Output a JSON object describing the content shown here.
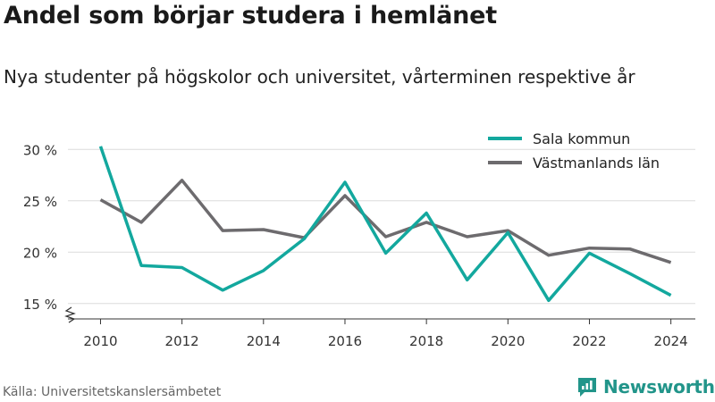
{
  "title": "Andel som börjar studera i hemlänet",
  "subtitle": "Nya studenter på högskolor och universitet, vårterminen respektive år",
  "source": "Källa: Universitetskanslersämbetet",
  "brand": {
    "name": "Newsworthy",
    "icon": "newsworthy-logo-icon",
    "color": "#22958a"
  },
  "chart_data": {
    "type": "line",
    "x": [
      2010,
      2011,
      2012,
      2013,
      2014,
      2015,
      2016,
      2017,
      2018,
      2019,
      2020,
      2021,
      2022,
      2023,
      2024
    ],
    "x_ticks": [
      2010,
      2012,
      2014,
      2016,
      2018,
      2020,
      2022,
      2024
    ],
    "y_ticks": [
      15,
      20,
      25,
      30
    ],
    "y_tick_suffix": " %",
    "ylim": [
      13.5,
      31.5
    ],
    "xlim": [
      2009.2,
      2024.6
    ],
    "grid": "horizontal",
    "axis_break": true,
    "legend_position": "top-right",
    "series": [
      {
        "name": "Sala kommun",
        "color": "#13a89e",
        "values": [
          30.3,
          18.7,
          18.5,
          16.3,
          18.2,
          21.3,
          26.8,
          19.9,
          23.8,
          17.3,
          21.9,
          15.3,
          19.9,
          17.9,
          15.8
        ]
      },
      {
        "name": "Västmanlands län",
        "color": "#6d6b6e",
        "values": [
          25.1,
          22.9,
          27.0,
          22.1,
          22.2,
          21.4,
          25.5,
          21.5,
          22.9,
          21.5,
          22.1,
          19.7,
          20.4,
          20.3,
          19.0
        ]
      }
    ]
  }
}
